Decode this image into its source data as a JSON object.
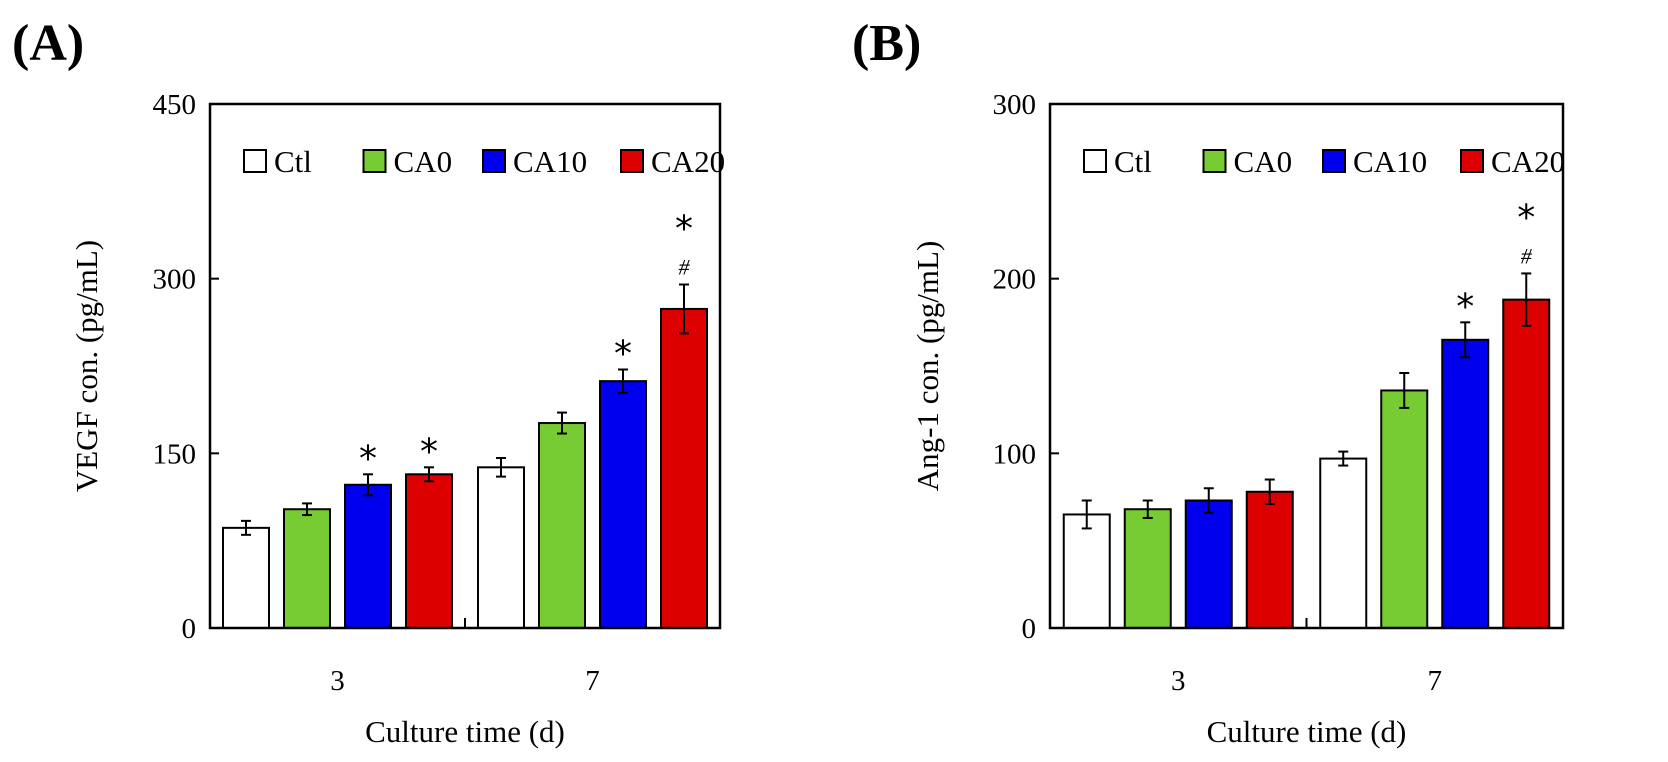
{
  "chart_data": [
    {
      "type": "bar",
      "panel_label": "(A)",
      "xlabel": "Culture time (d)",
      "ylabel": "VEGF con. (pg/mL)",
      "categories": [
        "3",
        "7"
      ],
      "ylim": [
        0,
        450
      ],
      "yticks": [
        "0",
        "150",
        "300",
        "450"
      ],
      "grid": false,
      "legend_position": "top",
      "series": [
        {
          "name": "Ctl",
          "color": "#ffffff",
          "values": [
            86,
            138
          ],
          "errors": [
            6,
            8
          ],
          "annotations": [
            "",
            ""
          ]
        },
        {
          "name": "CA0",
          "color": "#77cc33",
          "values": [
            102,
            176
          ],
          "errors": [
            5,
            9
          ],
          "annotations": [
            "",
            ""
          ]
        },
        {
          "name": "CA10",
          "color": "#0000ee",
          "values": [
            123,
            212
          ],
          "errors": [
            9,
            10
          ],
          "annotations": [
            "*",
            "*"
          ]
        },
        {
          "name": "CA20",
          "color": "#dd0000",
          "values": [
            132,
            274
          ],
          "errors": [
            6,
            21
          ],
          "annotations": [
            "*",
            "*#"
          ]
        }
      ]
    },
    {
      "type": "bar",
      "panel_label": "(B)",
      "xlabel": "Culture time (d)",
      "ylabel": "Ang-1 con. (pg/mL)",
      "categories": [
        "3",
        "7"
      ],
      "ylim": [
        0,
        300
      ],
      "yticks": [
        "0",
        "100",
        "200",
        "300"
      ],
      "grid": false,
      "legend_position": "top",
      "series": [
        {
          "name": "Ctl",
          "color": "#ffffff",
          "values": [
            65,
            97
          ],
          "errors": [
            8,
            4
          ],
          "annotations": [
            "",
            ""
          ]
        },
        {
          "name": "CA0",
          "color": "#77cc33",
          "values": [
            68,
            136
          ],
          "errors": [
            5,
            10
          ],
          "annotations": [
            "",
            ""
          ]
        },
        {
          "name": "CA10",
          "color": "#0000ee",
          "values": [
            73,
            165
          ],
          "errors": [
            7,
            10
          ],
          "annotations": [
            "",
            "*"
          ]
        },
        {
          "name": "CA20",
          "color": "#dd0000",
          "values": [
            78,
            188
          ],
          "errors": [
            7,
            15
          ],
          "annotations": [
            "",
            "*#"
          ]
        }
      ]
    }
  ]
}
